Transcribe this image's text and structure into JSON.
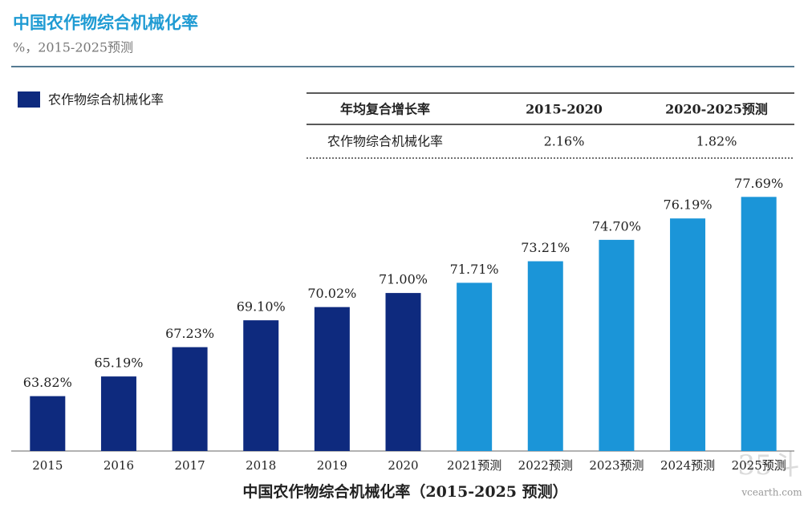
{
  "chart_data": {
    "type": "bar",
    "title": "中国农作物综合机械化率",
    "subtitle": "%，2015-2025预测",
    "legend": "农作物综合机械化率",
    "legend_color": "#0e2a7e",
    "categories": [
      "2015",
      "2016",
      "2017",
      "2018",
      "2019",
      "2020",
      "2021预测",
      "2022预测",
      "2023预测",
      "2024预测",
      "2025预测"
    ],
    "values": [
      63.82,
      65.19,
      67.23,
      69.1,
      70.02,
      71.0,
      71.71,
      73.21,
      74.7,
      76.19,
      77.69
    ],
    "value_labels": [
      "63.82%",
      "65.19%",
      "67.23%",
      "69.10%",
      "70.02%",
      "71.00%",
      "71.71%",
      "73.21%",
      "74.70%",
      "76.19%",
      "77.69%"
    ],
    "colors": [
      "#0e2a7e",
      "#0e2a7e",
      "#0e2a7e",
      "#0e2a7e",
      "#0e2a7e",
      "#0e2a7e",
      "#1b95d8",
      "#1b95d8",
      "#1b95d8",
      "#1b95d8",
      "#1b95d8"
    ],
    "ylim": [
      60,
      80
    ],
    "table": {
      "header": [
        "年均复合增长率",
        "2015-2020",
        "2020-2025预测"
      ],
      "row": [
        "农作物综合机械化率",
        "2.16%",
        "1.82%"
      ]
    },
    "caption": "中国农作物综合机械化率（2015-2025 预测）",
    "watermark": [
      "35斗",
      "vcearth.com"
    ]
  }
}
